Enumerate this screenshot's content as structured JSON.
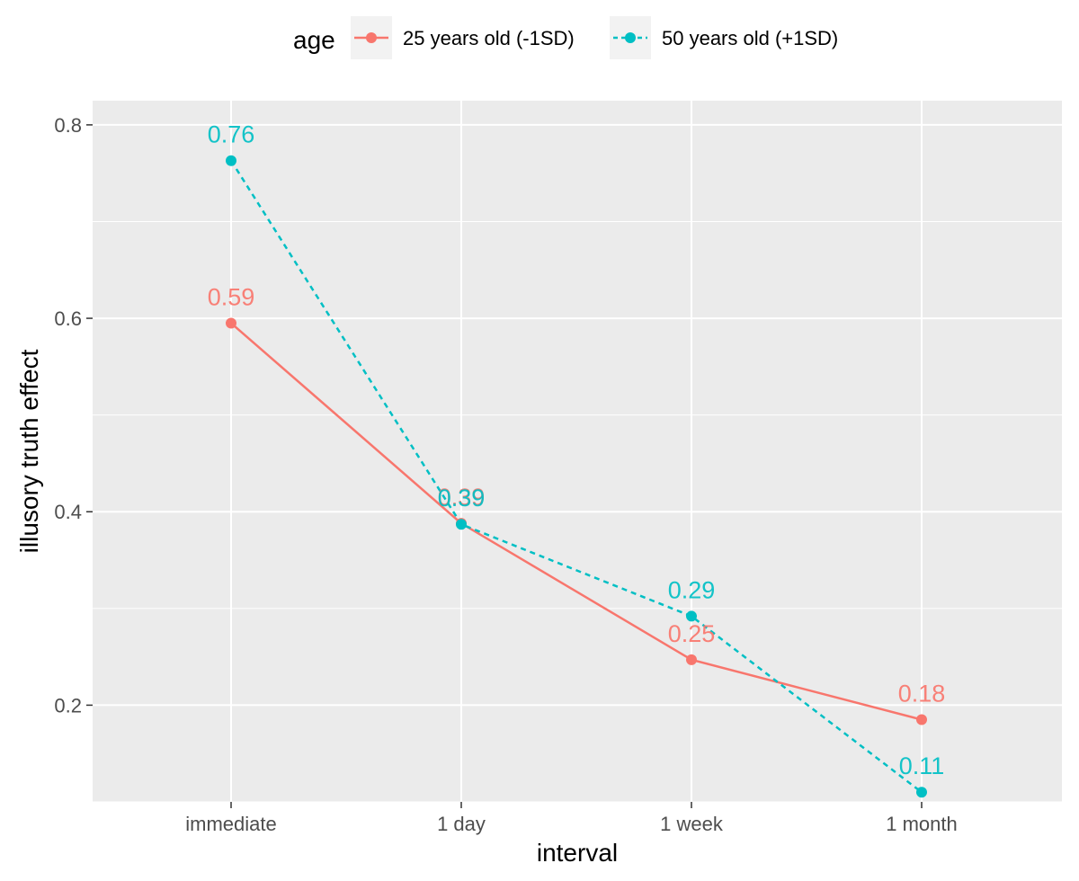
{
  "chart_data": {
    "type": "line",
    "title": "",
    "xlabel": "interval",
    "ylabel": "illusory truth effect",
    "categories": [
      "immediate",
      "1 day",
      "1 week",
      "1 month"
    ],
    "ylim": [
      0.1,
      0.825
    ],
    "yticks": [
      0.2,
      0.4,
      0.6,
      0.8
    ],
    "ytick_labels": [
      "0.2",
      "0.4",
      "0.6",
      "0.8"
    ],
    "grid": true,
    "legend": {
      "title": "age",
      "position": "top"
    },
    "series": [
      {
        "name": "25 years old (-1SD)",
        "color": "#F8766D",
        "line_style": "solid",
        "values": [
          0.595,
          0.388,
          0.247,
          0.185
        ],
        "labels": [
          "0.59",
          "0.39",
          "0.25",
          "0.18"
        ]
      },
      {
        "name": "50 years old (+1SD)",
        "color": "#00BFC4",
        "line_style": "dashed",
        "values": [
          0.763,
          0.387,
          0.292,
          0.11
        ],
        "labels": [
          "0.76",
          "0.39",
          "0.29",
          "0.11"
        ]
      }
    ]
  }
}
